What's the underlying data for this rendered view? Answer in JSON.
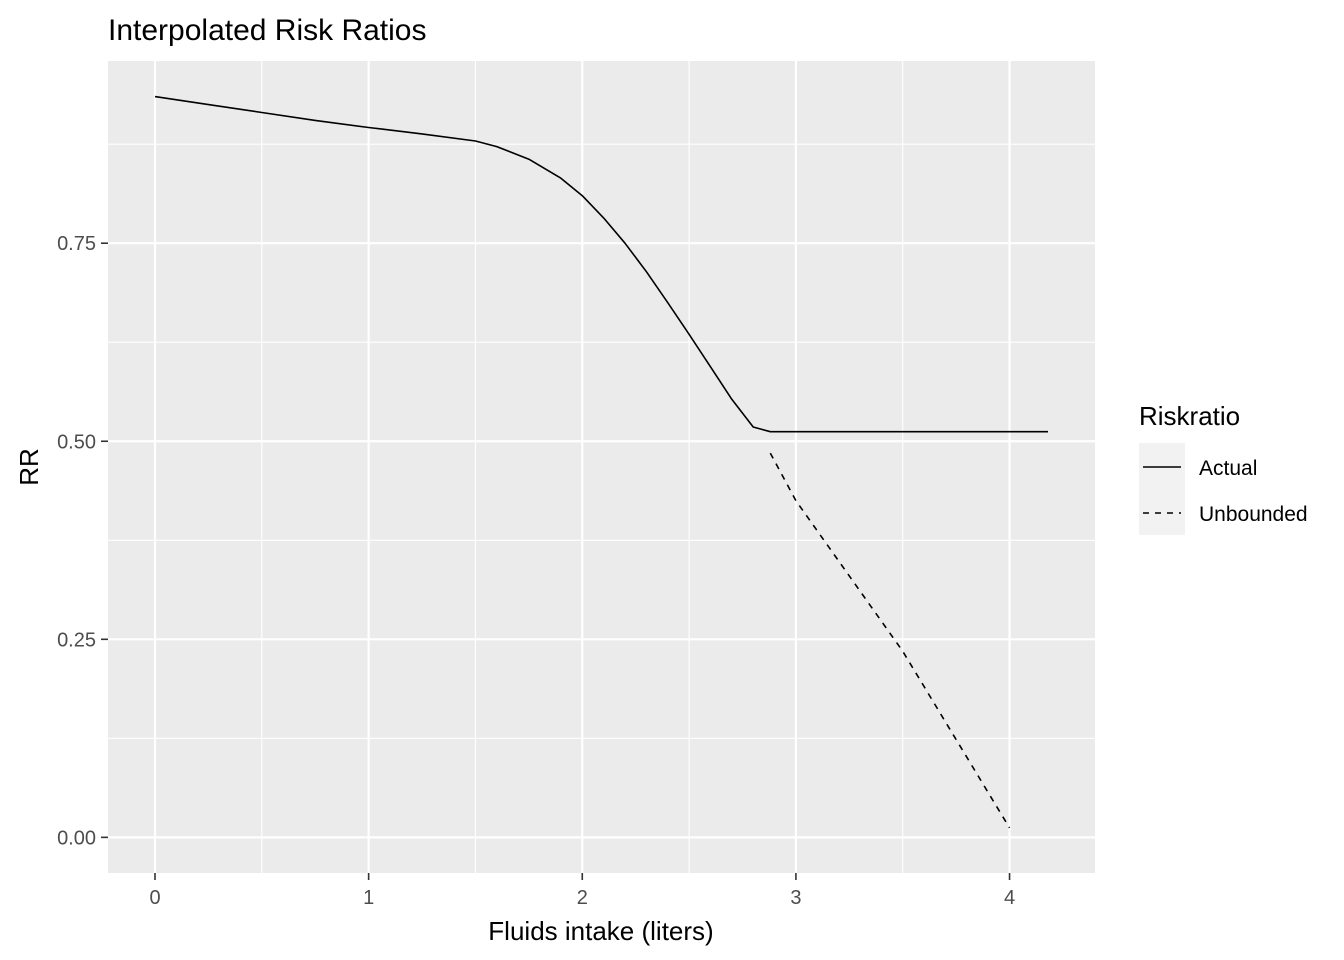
{
  "chart_data": {
    "type": "line",
    "title": "Interpolated Risk Ratios",
    "xlabel": "Fluids intake (liters)",
    "ylabel": "RR",
    "xlim": [
      -0.22,
      4.4
    ],
    "ylim": [
      -0.045,
      0.98
    ],
    "x_ticks": [
      0,
      1,
      2,
      3,
      4
    ],
    "x_tick_labels": [
      "0",
      "1",
      "2",
      "3",
      "4"
    ],
    "y_ticks": [
      0,
      0.25,
      0.5,
      0.75
    ],
    "y_tick_labels": [
      "0.00",
      "0.25",
      "0.50",
      "0.75"
    ],
    "grid": true,
    "legend": {
      "title": "Riskratio",
      "position": "right"
    },
    "series": [
      {
        "name": "Actual",
        "linestyle": "solid",
        "x": [
          0,
          0.25,
          0.5,
          0.75,
          1.0,
          1.25,
          1.5,
          1.6,
          1.75,
          1.9,
          2.0,
          2.1,
          2.2,
          2.3,
          2.4,
          2.5,
          2.6,
          2.7,
          2.8,
          2.88,
          3.0,
          3.5,
          4.0,
          4.18
        ],
        "values": [
          0.935,
          0.925,
          0.915,
          0.905,
          0.896,
          0.888,
          0.879,
          0.872,
          0.856,
          0.832,
          0.81,
          0.782,
          0.75,
          0.714,
          0.675,
          0.635,
          0.594,
          0.553,
          0.518,
          0.512,
          0.512,
          0.512,
          0.512,
          0.512
        ]
      },
      {
        "name": "Unbounded",
        "linestyle": "dashed",
        "x": [
          2.88,
          3.0,
          3.5,
          4.0
        ],
        "values": [
          0.485,
          0.425,
          0.235,
          0.012
        ]
      }
    ]
  },
  "colors": {
    "panel_background": "#EBEBEB",
    "grid_major": "#FFFFFF",
    "line": "#000000",
    "tick_text": "#4D4D4D",
    "legend_key_background": "#F2F2F2"
  }
}
